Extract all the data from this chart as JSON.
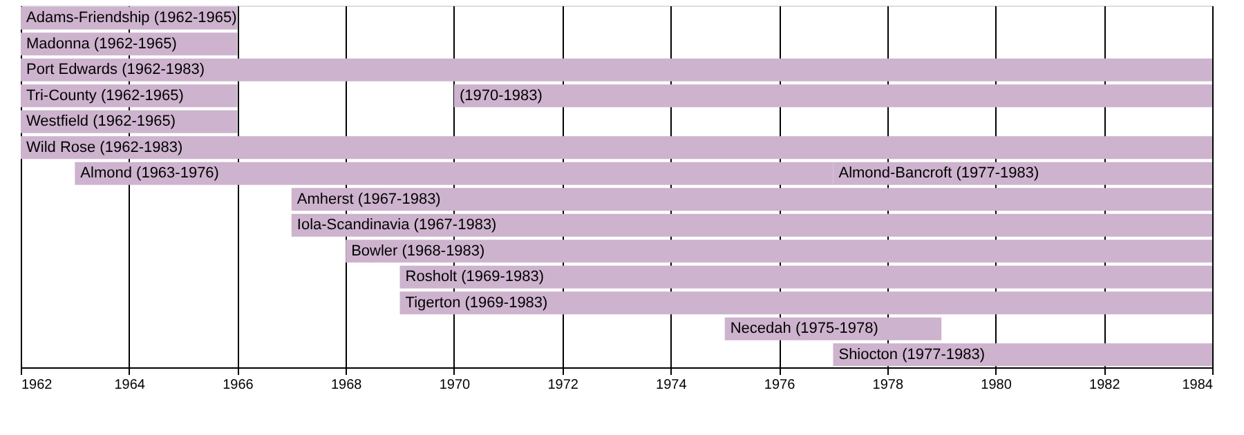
{
  "chart_data": {
    "type": "bar",
    "orientation": "horizontal",
    "categories": [
      null,
      null,
      null,
      null,
      null,
      null,
      null,
      null,
      null,
      null,
      null,
      null,
      null,
      null
    ],
    "series": [
      {
        "color": "#cdb3cd",
        "base": [
          1962,
          1962,
          1962,
          1962,
          1962,
          1962,
          1963,
          1967,
          1967,
          1968,
          1969,
          1969,
          1975,
          1977
        ],
        "values": [
          4,
          4,
          22,
          4,
          4,
          22,
          14,
          17,
          17,
          16,
          15,
          15,
          4,
          7
        ],
        "value_labels": [
          "Adams-Friendship (1962-1965)",
          "Madonna (1962-1965)",
          "Port Edwards (1962-1983)",
          "Tri-County (1962-1965)",
          "Westfield (1962-1965)",
          "Wild Rose (1962-1983)",
          "Almond (1963-1976)",
          "Amherst (1967-1983)",
          "Iola-Scandinavia (1967-1983)",
          "Bowler (1968-1983)",
          "Rosholt (1969-1983)",
          "Tigerton (1969-1983)",
          "Necedah (1975-1978)",
          "Shiocton (1977-1983)"
        ]
      },
      {
        "color": "#cdb3cd",
        "base": [
          null,
          null,
          null,
          1970,
          null,
          null,
          1977,
          null,
          null,
          null,
          null,
          null,
          null,
          null
        ],
        "values": [
          null,
          null,
          null,
          14,
          null,
          null,
          7,
          null,
          null,
          null,
          null,
          null,
          null,
          null
        ],
        "value_labels": [
          null,
          null,
          null,
          "(1970-1983)",
          null,
          null,
          "Almond-Bancroft (1977-1983)",
          null,
          null,
          null,
          null,
          null,
          null,
          null
        ]
      }
    ],
    "xlim": [
      1962,
      1984
    ],
    "xticks": [
      1962,
      1964,
      1966,
      1968,
      1970,
      1972,
      1974,
      1976,
      1978,
      1980,
      1982,
      1984
    ],
    "grid": "x",
    "tick_labels": "x"
  }
}
